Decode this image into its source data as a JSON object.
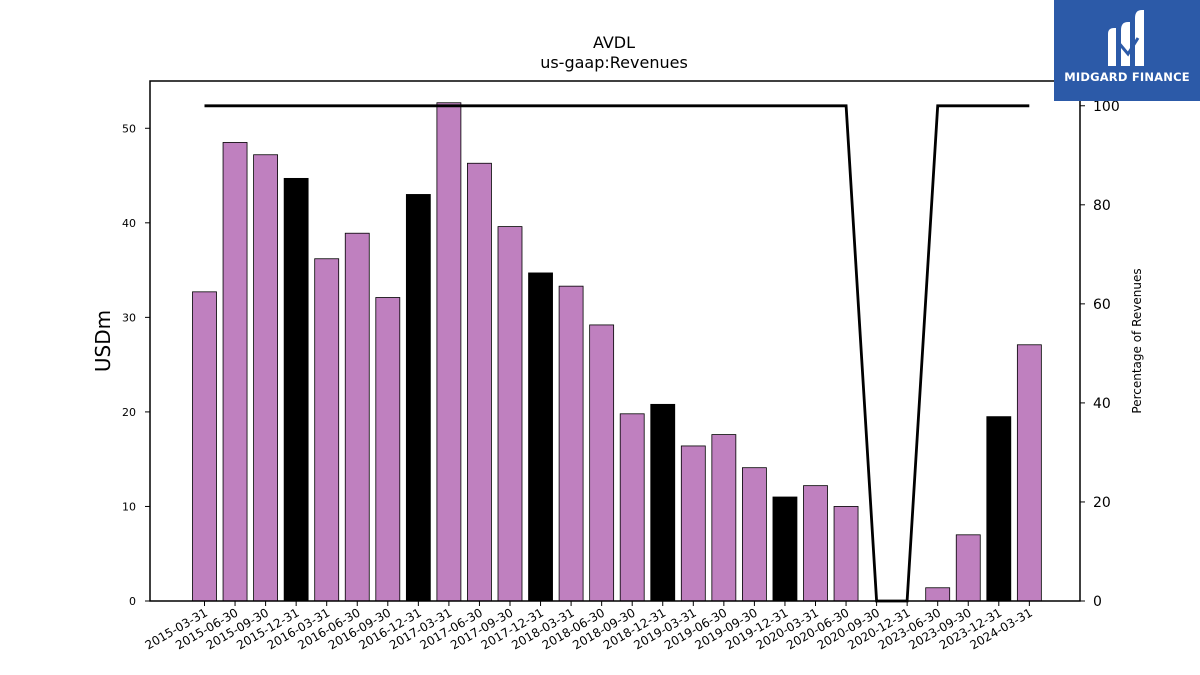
{
  "chart_data": {
    "type": "bar",
    "title": "AVDL",
    "subtitle": "us-gaap:Revenues",
    "ylabel": "USDm",
    "y2label": "Percentage of Revenues",
    "ylim": [
      0,
      55
    ],
    "y2lim": [
      0,
      105
    ],
    "yticks": [
      0,
      10,
      20,
      30,
      40,
      50
    ],
    "y2ticks": [
      0,
      20,
      40,
      60,
      80,
      100
    ],
    "categories": [
      "2015-03-31",
      "2015-06-30",
      "2015-09-30",
      "2015-12-31",
      "2016-03-31",
      "2016-06-30",
      "2016-09-30",
      "2016-12-31",
      "2017-03-31",
      "2017-06-30",
      "2017-09-30",
      "2017-12-31",
      "2018-03-31",
      "2018-06-30",
      "2018-09-30",
      "2018-12-31",
      "2019-03-31",
      "2019-06-30",
      "2019-09-30",
      "2019-12-31",
      "2020-03-31",
      "2020-06-30",
      "2020-09-30",
      "2020-12-31",
      "2023-06-30",
      "2023-09-30",
      "2023-12-31",
      "2024-03-31"
    ],
    "values": [
      32.7,
      48.5,
      47.2,
      44.7,
      36.2,
      38.9,
      32.1,
      43.0,
      52.7,
      46.3,
      39.6,
      34.7,
      33.3,
      29.2,
      19.8,
      20.8,
      16.4,
      17.6,
      14.1,
      11.0,
      12.2,
      10.0,
      0,
      0,
      1.4,
      7.0,
      19.5,
      27.1
    ],
    "bar_highlight": [
      false,
      false,
      false,
      true,
      false,
      false,
      false,
      true,
      false,
      false,
      false,
      true,
      false,
      false,
      false,
      true,
      false,
      false,
      false,
      true,
      false,
      false,
      false,
      false,
      false,
      false,
      true,
      false
    ],
    "line_values": [
      100,
      100,
      100,
      100,
      100,
      100,
      100,
      100,
      100,
      100,
      100,
      100,
      100,
      100,
      100,
      100,
      100,
      100,
      100,
      100,
      100,
      100,
      0,
      0,
      100,
      100,
      100,
      100
    ],
    "colors": {
      "bar": "#bf80bf",
      "bar_highlight": "#000000",
      "line": "#000000"
    },
    "grid": false,
    "legend": "none"
  },
  "logo": {
    "text": "MIDGARD FINANCE",
    "icon": "midgard-logo-icon",
    "bg": "#2c5aa8"
  }
}
